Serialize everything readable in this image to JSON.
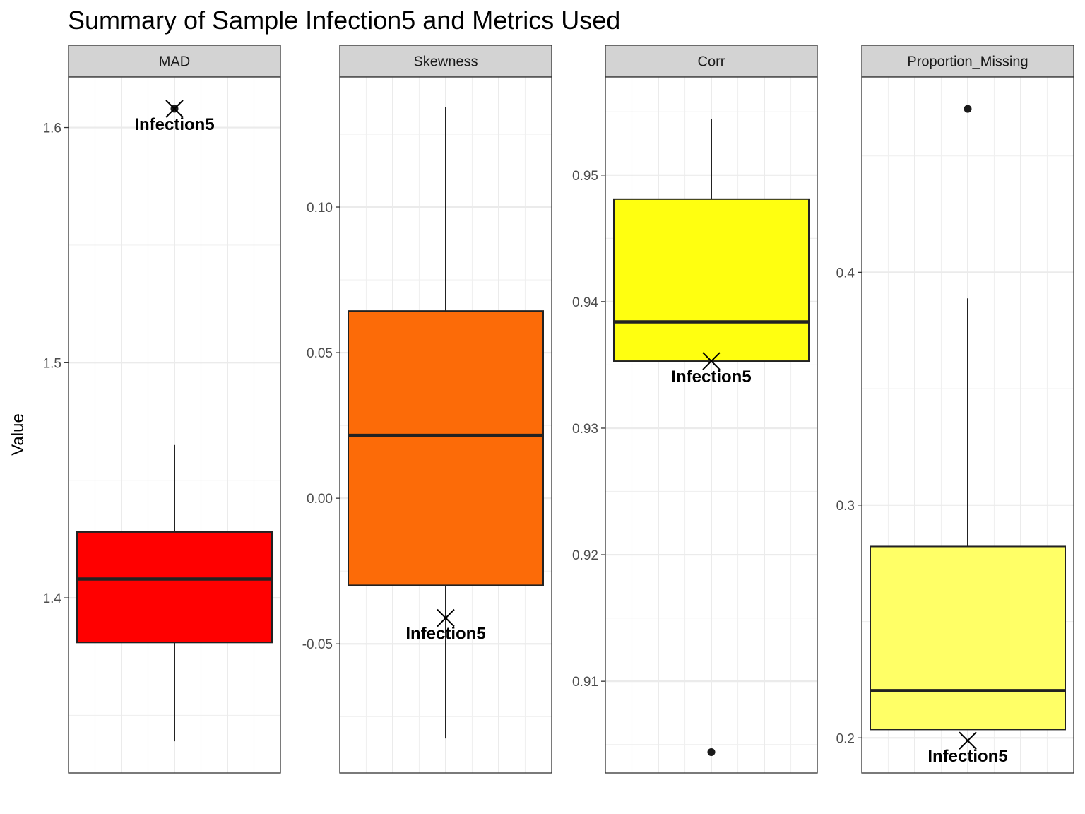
{
  "chart_data": {
    "type": "boxplot",
    "title": "Summary of Sample Infection5 and Metrics Used",
    "ylabel": "Value",
    "xlabel": "",
    "grid": true,
    "highlight_sample": "Infection5",
    "panels": [
      {
        "name": "MAD",
        "fill": "#ff0000",
        "ylim": [
          1.3255,
          1.6215
        ],
        "ticks": [
          1.4,
          1.5,
          1.6
        ],
        "tick_labels": [
          "1.4",
          "1.5",
          "1.6"
        ],
        "box": {
          "whisker_low": 1.339,
          "q1": 1.381,
          "median": 1.408,
          "q3": 1.428,
          "whisker_high": 1.465
        },
        "outliers": [
          1.608
        ],
        "sample_value": 1.608
      },
      {
        "name": "Skewness",
        "fill": "#fc6b08",
        "ylim": [
          -0.09435,
          0.14465
        ],
        "ticks": [
          -0.05,
          0.0,
          0.05,
          0.1
        ],
        "tick_labels": [
          "-0.05",
          "0.00",
          "0.05",
          "0.10"
        ],
        "box": {
          "whisker_low": -0.0825,
          "q1": -0.0299,
          "median": 0.0216,
          "q3": 0.0643,
          "whisker_high": 0.1343
        },
        "outliers": [],
        "sample_value": -0.0411
      },
      {
        "name": "Corr",
        "fill": "#ffff10",
        "ylim": [
          0.90275,
          0.95775
        ],
        "ticks": [
          0.91,
          0.92,
          0.93,
          0.94,
          0.95
        ],
        "tick_labels": [
          "0.91",
          "0.92",
          "0.93",
          "0.94",
          "0.95"
        ],
        "box": {
          "whisker_low": 0.9353,
          "q1": 0.9353,
          "median": 0.9384,
          "q3": 0.9481,
          "whisker_high": 0.9544
        },
        "outliers": [
          0.9044
        ],
        "sample_value": 0.9353
      },
      {
        "name": "Proportion_Missing",
        "fill": "#ffff66",
        "ylim": [
          0.1849,
          0.4839
        ],
        "ticks": [
          0.2,
          0.3,
          0.4
        ],
        "tick_labels": [
          "0.2",
          "0.3",
          "0.4"
        ],
        "box": {
          "whisker_low": 0.2036,
          "q1": 0.2036,
          "median": 0.2203,
          "q3": 0.2822,
          "whisker_high": 0.3888
        },
        "outliers": [
          0.4702
        ],
        "sample_value": 0.1988
      }
    ]
  }
}
